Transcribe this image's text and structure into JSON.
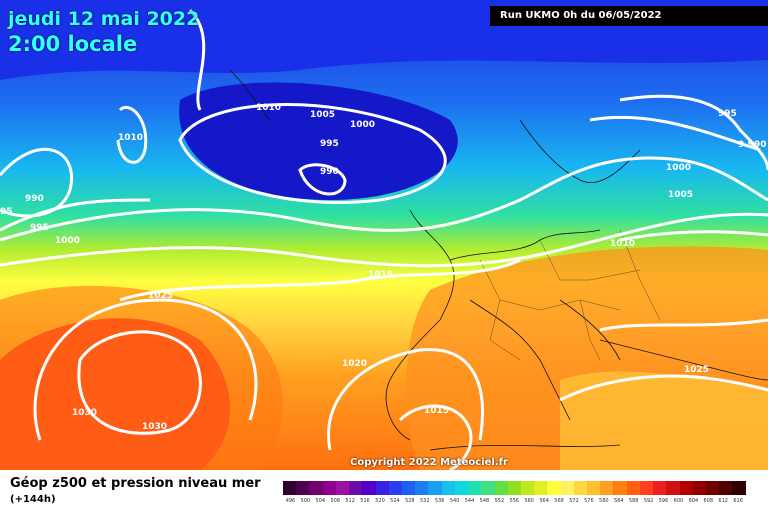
{
  "header": {
    "date_line": "jeudi 12 mai 2022",
    "time_line": "2:00 locale",
    "run_info": "Run UKMO 0h du 06/05/2022"
  },
  "map": {
    "copyright": "Copyright 2022 Meteociel.fr",
    "isobar_labels": [
      "1010",
      "1005",
      "1000",
      "995",
      "990",
      "1010",
      "990",
      "995",
      "1000",
      "1015",
      "1025",
      "1020",
      "1030",
      "1030",
      "1015",
      "995",
      "9.990",
      "1000",
      "1005",
      "1010",
      "1025",
      "95"
    ]
  },
  "footer": {
    "title": "Géop z500 et pression niveau mer",
    "subtitle": "(+144h)",
    "scale_colors": [
      "#300030",
      "#500050",
      "#700070",
      "#900090",
      "#a010a0",
      "#6a0dad",
      "#5000c8",
      "#3a20e0",
      "#2a40f0",
      "#2060f0",
      "#1e80f0",
      "#1aa0f0",
      "#18c0f0",
      "#10d8e0",
      "#20e0b0",
      "#40e080",
      "#60e040",
      "#90e020",
      "#c0e820",
      "#e0f020",
      "#ffff40",
      "#fff060",
      "#ffd840",
      "#ffc030",
      "#ffa020",
      "#ff8010",
      "#ff6010",
      "#ff4020",
      "#f02020",
      "#d01010",
      "#b00000",
      "#900000",
      "#700000",
      "#500000",
      "#300000"
    ],
    "scale_values": [
      "496",
      "500",
      "504",
      "508",
      "512",
      "516",
      "520",
      "524",
      "528",
      "532",
      "536",
      "540",
      "544",
      "548",
      "552",
      "556",
      "560",
      "564",
      "568",
      "572",
      "576",
      "580",
      "584",
      "588",
      "592",
      "596",
      "600",
      "604",
      "608",
      "612",
      "616"
    ]
  }
}
